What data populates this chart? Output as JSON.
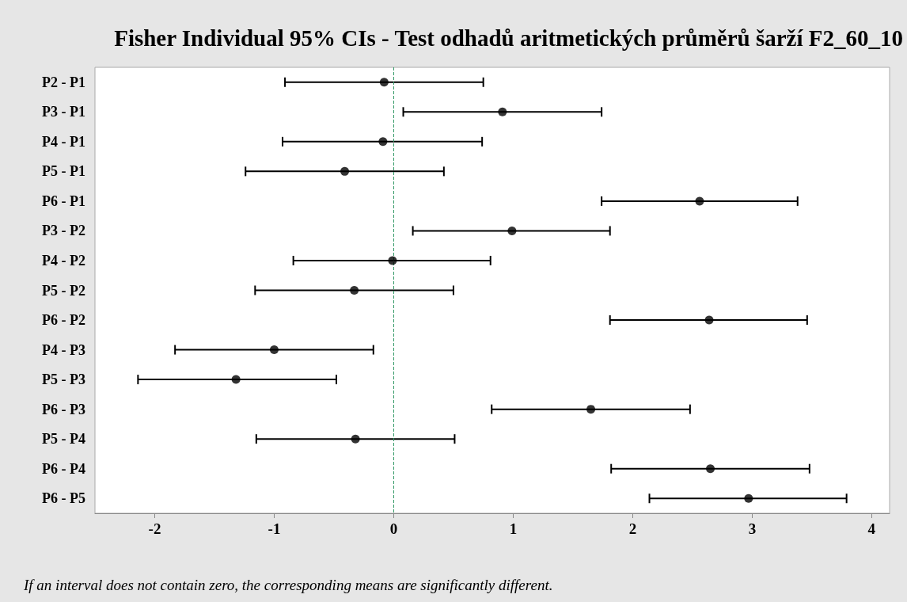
{
  "chart_data": {
    "type": "scatter",
    "orientation": "horizontal",
    "title": "Fisher Individual 95% CIs - Test odhadů aritmetických průměrů šarží F2_60_10",
    "categories": [
      "P2 - P1",
      "P3 - P1",
      "P4 - P1",
      "P5 - P1",
      "P6 - P1",
      "P3 - P2",
      "P4 - P2",
      "P5 - P2",
      "P6 - P2",
      "P4 - P3",
      "P5 - P3",
      "P6 - P3",
      "P5 - P4",
      "P6 - P4",
      "P6 - P5"
    ],
    "series": [
      {
        "color": "#000000",
        "values": [
          -0.08,
          0.91,
          -0.09,
          -0.41,
          2.56,
          0.99,
          -0.01,
          -0.33,
          2.64,
          -1.0,
          -1.32,
          1.65,
          -0.32,
          2.65,
          2.97
        ],
        "errors": [
          [
            -0.91,
            0.75
          ],
          [
            0.08,
            1.74
          ],
          [
            -0.93,
            0.74
          ],
          [
            -1.24,
            0.42
          ],
          [
            1.74,
            3.38
          ],
          [
            0.16,
            1.81
          ],
          [
            -0.84,
            0.81
          ],
          [
            -1.16,
            0.5
          ],
          [
            1.81,
            3.46
          ],
          [
            -1.83,
            -0.17
          ],
          [
            -2.14,
            -0.48
          ],
          [
            0.82,
            2.48
          ],
          [
            -1.15,
            0.51
          ],
          [
            1.82,
            3.48
          ],
          [
            2.14,
            3.79
          ]
        ]
      }
    ],
    "xlim": [
      -2.5,
      4.15
    ],
    "xticks": [
      -2,
      -1,
      0,
      1,
      2,
      3,
      4
    ],
    "ref_lines": [
      {
        "axis": "x",
        "value": 0,
        "color": "#339966",
        "line_style": "dashed"
      }
    ],
    "annotations": [
      "If an interval does not contain zero, the corresponding means are significantly different."
    ],
    "marker": "circle",
    "grid": false
  }
}
